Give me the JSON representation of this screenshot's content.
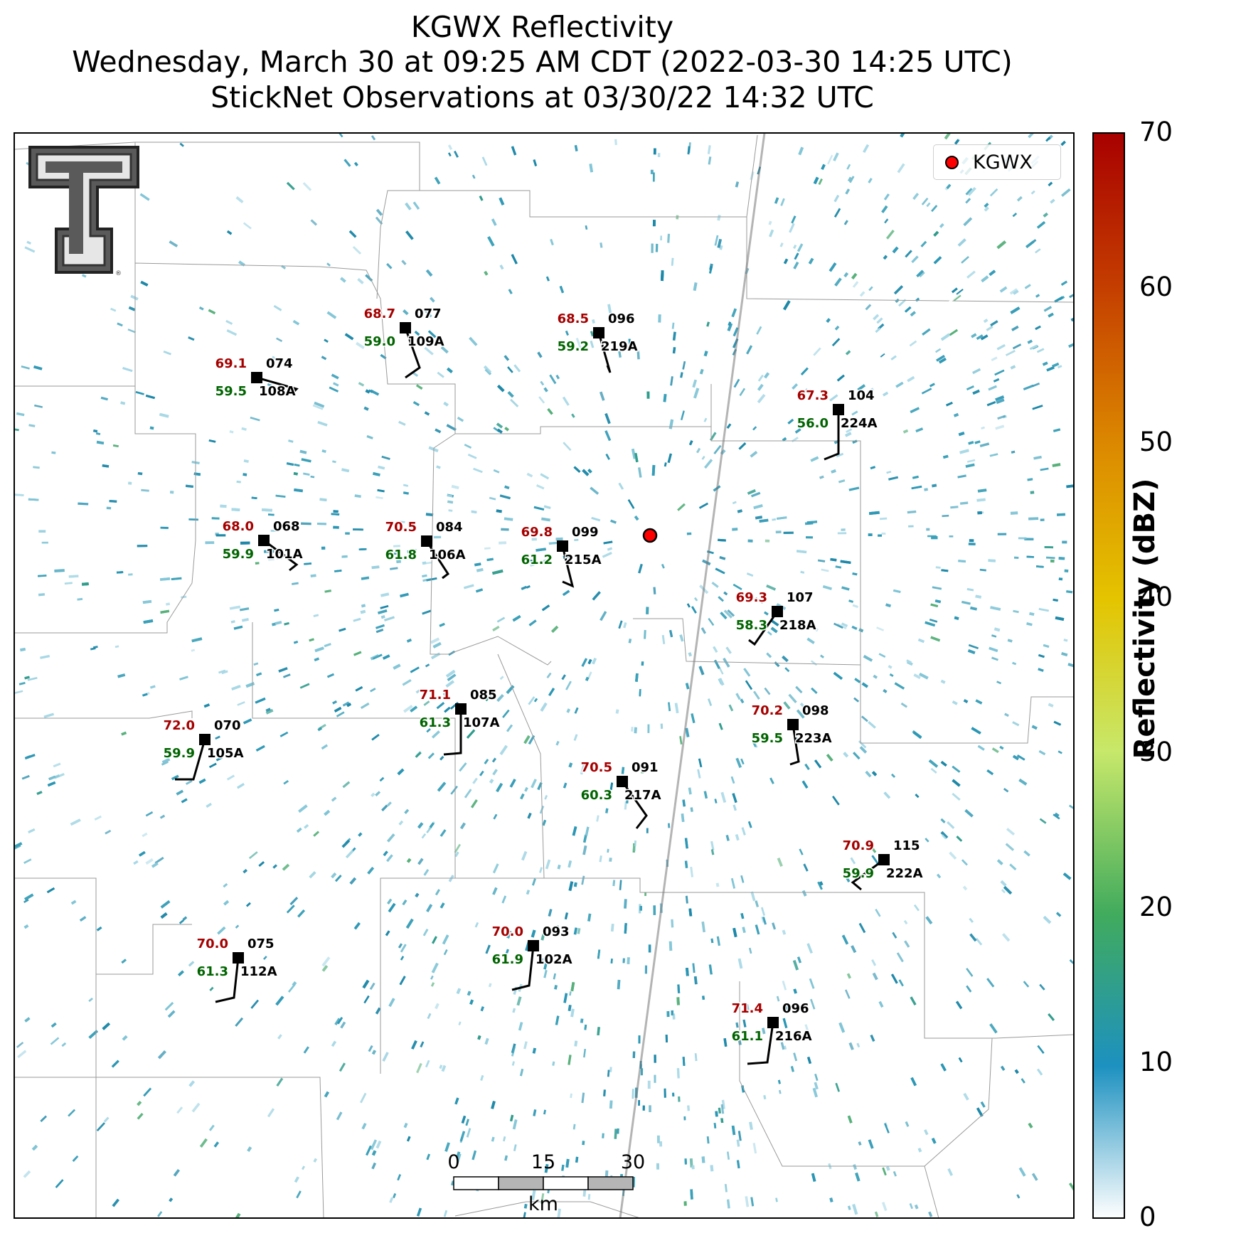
{
  "title": {
    "line1": "KGWX Reflectivity",
    "line2": "Wednesday, March 30 at 09:25 AM CDT (2022-03-30 14:25 UTC)",
    "line3": "StickNet Observations at 03/30/22 14:32 UTC"
  },
  "legend": {
    "label": "KGWX",
    "marker_color": "#ff0000"
  },
  "colorbar": {
    "label": "Reflectivity (dBZ)",
    "ticks": [
      "0",
      "10",
      "20",
      "30",
      "40",
      "50",
      "60",
      "70"
    ],
    "min": 0,
    "max": 70,
    "stops": [
      "#ffffff",
      "#1d91c0",
      "#41ab5d",
      "#a1d76a",
      "#e7f542",
      "#e5b500",
      "#d96c00",
      "#a80000"
    ]
  },
  "scale_bar": {
    "labels": [
      "0",
      "15",
      "30"
    ],
    "unit": "km"
  },
  "logo": {
    "name": "Texas Tech Double T"
  },
  "colors": {
    "temp": "#a50000",
    "dew": "#006400",
    "station": "#000000",
    "echo": "#2a96b4"
  },
  "stations": [
    {
      "id": "108A",
      "temp": "69.1",
      "dew": "59.5",
      "pressure": "074"
    },
    {
      "id": "109A",
      "temp": "68.7",
      "dew": "59.0",
      "pressure": "077"
    },
    {
      "id": "219A",
      "temp": "68.5",
      "dew": "59.2",
      "pressure": "096"
    },
    {
      "id": "224A",
      "temp": "67.3",
      "dew": "56.0",
      "pressure": "104"
    },
    {
      "id": "101A",
      "temp": "68.0",
      "dew": "59.9",
      "pressure": "068"
    },
    {
      "id": "106A",
      "temp": "70.5",
      "dew": "61.8",
      "pressure": "084"
    },
    {
      "id": "215A",
      "temp": "69.8",
      "dew": "61.2",
      "pressure": "099"
    },
    {
      "id": "218A",
      "temp": "69.3",
      "dew": "58.3",
      "pressure": "107"
    },
    {
      "id": "107A",
      "temp": "71.1",
      "dew": "61.3",
      "pressure": "085"
    },
    {
      "id": "223A",
      "temp": "70.2",
      "dew": "59.5",
      "pressure": "098"
    },
    {
      "id": "105A",
      "temp": "72.0",
      "dew": "59.9",
      "pressure": "070"
    },
    {
      "id": "217A",
      "temp": "70.5",
      "dew": "60.3",
      "pressure": "091"
    },
    {
      "id": "222A",
      "temp": "70.9",
      "dew": "59.9",
      "pressure": "115"
    },
    {
      "id": "102A",
      "temp": "70.0",
      "dew": "61.9",
      "pressure": "093"
    },
    {
      "id": "112A",
      "temp": "70.0",
      "dew": "61.3",
      "pressure": "075"
    },
    {
      "id": "216A",
      "temp": "71.4",
      "dew": "61.1",
      "pressure": "096"
    }
  ]
}
